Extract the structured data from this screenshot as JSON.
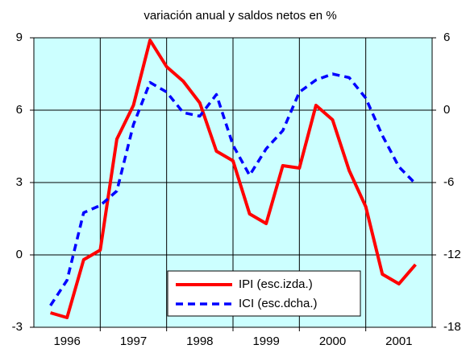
{
  "chart_data": {
    "type": "line",
    "title": "variación anual  y saldos netos en %",
    "x": [
      1996.25,
      1996.5,
      1996.75,
      1997,
      1997.25,
      1997.5,
      1997.75,
      1998,
      1998.25,
      1998.5,
      1998.75,
      1999,
      1999.25,
      1999.5,
      1999.75,
      2000,
      2000.25,
      2000.5,
      2000.75,
      2001,
      2001.25,
      2001.5,
      2001.75
    ],
    "series": [
      {
        "name": "IPI (esc.izda.)",
        "color": "#ff0000",
        "axis": "y",
        "values": [
          -2.4,
          -2.6,
          -0.2,
          0.2,
          4.8,
          6.2,
          8.9,
          7.8,
          7.2,
          6.3,
          4.3,
          3.9,
          1.7,
          1.3,
          3.7,
          3.6,
          6.2,
          5.6,
          3.5,
          2.0,
          -0.8,
          -1.2,
          -0.4
        ]
      },
      {
        "name": "ICI (esc.dcha.)",
        "color": "#0000ff",
        "axis": "y2",
        "values": [
          -16.2,
          -14.1,
          -8.5,
          -7.9,
          -6.7,
          -1.2,
          2.3,
          1.5,
          -0.2,
          -0.5,
          1.3,
          -2.9,
          -5.4,
          -3.2,
          -1.7,
          1.5,
          2.5,
          3.0,
          2.7,
          1.0,
          -2.1,
          -4.7,
          -6.1
        ]
      }
    ],
    "xlim": [
      1996,
      2002
    ],
    "xticks": [
      {
        "value": 1996.5,
        "label": "1996"
      },
      {
        "value": 1997.5,
        "label": "1997"
      },
      {
        "value": 1998.5,
        "label": "1998"
      },
      {
        "value": 1999.5,
        "label": "1999"
      },
      {
        "value": 2000.5,
        "label": "2000"
      },
      {
        "value": 2001.5,
        "label": "2001"
      }
    ],
    "xgrid": [
      1997,
      1998,
      1999,
      2000,
      2001
    ],
    "ylim": [
      -3,
      9
    ],
    "yticks": [
      -3,
      0,
      3,
      6,
      9
    ],
    "y2lim": [
      -18,
      6
    ],
    "y2ticks": [
      -18,
      -12,
      -6,
      0,
      6
    ],
    "grid": true
  }
}
